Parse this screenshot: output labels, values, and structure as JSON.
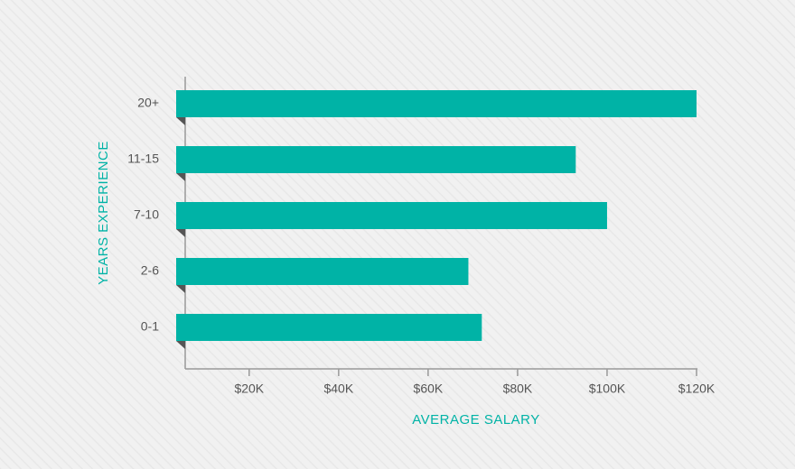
{
  "chart_data": {
    "type": "hbar",
    "categories": [
      "20+",
      "11-15",
      "7-10",
      "2-6",
      "0-1"
    ],
    "values": [
      120000,
      93000,
      100000,
      69000,
      72000
    ],
    "color": "#00b3a6",
    "xlabel": "AVERAGE SALARY",
    "ylabel": "YEARS EXPERIENCE",
    "xlim": [
      5700,
      120000
    ],
    "xticks": [
      {
        "value": 20000,
        "label": "$20K"
      },
      {
        "value": 40000,
        "label": "$40K"
      },
      {
        "value": 60000,
        "label": "$60K"
      },
      {
        "value": 80000,
        "label": "$80K"
      },
      {
        "value": 100000,
        "label": "$100K"
      },
      {
        "value": 120000,
        "label": "$120K"
      }
    ]
  }
}
